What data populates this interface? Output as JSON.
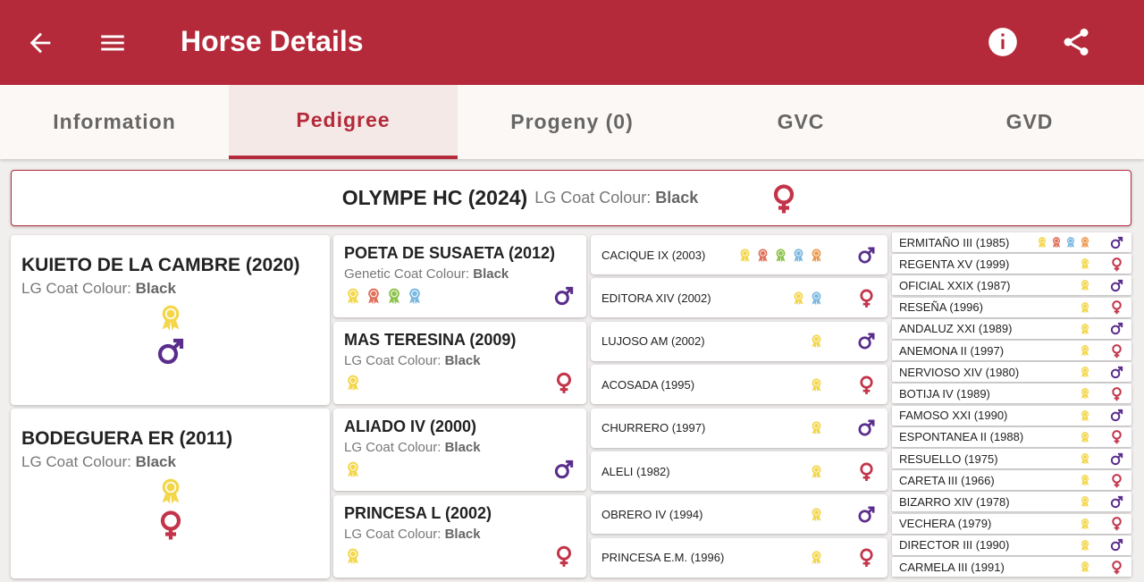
{
  "header": {
    "title": "Horse Details"
  },
  "tabs": {
    "items": [
      "Information",
      "Pedigree",
      "Progeny (0)",
      "GVC",
      "GVD"
    ],
    "active": 1
  },
  "subject": {
    "name": "OLYMPE HC (2024)",
    "coat_label": "LG Coat Colour:",
    "coat": "Black",
    "sex": "F"
  },
  "generation1": [
    {
      "name": "KUIETO DE LA CAMBRE (2020)",
      "coat_label": "LG Coat Colour:",
      "coat": "Black",
      "sex": "M",
      "awards": [
        "#f3d64a"
      ]
    },
    {
      "name": "BODEGUERA ER (2011)",
      "coat_label": "LG Coat Colour:",
      "coat": "Black",
      "sex": "F",
      "awards": [
        "#f3d64a"
      ]
    }
  ],
  "generation2": [
    {
      "name": "POETA DE SUSAETA (2012)",
      "coat_label": "Genetic Coat Colour:",
      "coat": "Black",
      "sex": "M",
      "awards": [
        "#f3d64a",
        "#e0705a",
        "#8cc34a",
        "#7ab8e0"
      ]
    },
    {
      "name": "MAS TERESINA (2009)",
      "coat_label": "LG Coat Colour:",
      "coat": "Black",
      "sex": "F",
      "awards": [
        "#f3d64a"
      ]
    },
    {
      "name": "ALIADO IV (2000)",
      "coat_label": "LG Coat Colour:",
      "coat": "Black",
      "sex": "M",
      "awards": [
        "#f3d64a"
      ]
    },
    {
      "name": "PRINCESA L (2002)",
      "coat_label": "LG Coat Colour:",
      "coat": "Black",
      "sex": "F",
      "awards": [
        "#f3d64a"
      ]
    }
  ],
  "generation3": [
    {
      "name": "CACIQUE IX (2003)",
      "sex": "M",
      "awards": [
        "#f3d64a",
        "#e0705a",
        "#8cc34a",
        "#7ab8e0",
        "#eb9a50"
      ]
    },
    {
      "name": "EDITORA XIV (2002)",
      "sex": "F",
      "awards": [
        "#f3d64a",
        "#7ab8e0"
      ]
    },
    {
      "name": "LUJOSO AM (2002)",
      "sex": "M",
      "awards": [
        "#f3d64a"
      ]
    },
    {
      "name": "ACOSADA (1995)",
      "sex": "F",
      "awards": [
        "#f3d64a"
      ]
    },
    {
      "name": "CHURRERO (1997)",
      "sex": "M",
      "awards": [
        "#f3d64a"
      ]
    },
    {
      "name": "ALELI (1982)",
      "sex": "F",
      "awards": [
        "#f3d64a"
      ]
    },
    {
      "name": "OBRERO IV (1994)",
      "sex": "M",
      "awards": [
        "#f3d64a"
      ]
    },
    {
      "name": "PRINCESA E.M. (1996)",
      "sex": "F",
      "awards": [
        "#f3d64a"
      ]
    }
  ],
  "generation4": [
    {
      "name": "ERMITAÑO III (1985)",
      "sex": "M",
      "awards": [
        "#f3d64a",
        "#e0705a",
        "#7ab8e0",
        "#eb9a50"
      ]
    },
    {
      "name": "REGENTA XV (1999)",
      "sex": "F",
      "awards": [
        "#f3d64a"
      ]
    },
    {
      "name": "OFICIAL XXIX (1987)",
      "sex": "M",
      "awards": [
        "#f3d64a"
      ]
    },
    {
      "name": "RESEÑA (1996)",
      "sex": "F",
      "awards": [
        "#f3d64a"
      ]
    },
    {
      "name": "ANDALUZ XXI (1989)",
      "sex": "M",
      "awards": [
        "#f3d64a"
      ]
    },
    {
      "name": "ANEMONA II (1997)",
      "sex": "F",
      "awards": [
        "#f3d64a"
      ]
    },
    {
      "name": "NERVIOSO XIV (1980)",
      "sex": "M",
      "awards": [
        "#f3d64a"
      ]
    },
    {
      "name": "BOTIJA IV (1989)",
      "sex": "F",
      "awards": [
        "#f3d64a"
      ]
    },
    {
      "name": "FAMOSO XXI (1990)",
      "sex": "M",
      "awards": [
        "#f3d64a"
      ]
    },
    {
      "name": "ESPONTANEA II (1988)",
      "sex": "F",
      "awards": [
        "#f3d64a"
      ]
    },
    {
      "name": "RESUELLO (1975)",
      "sex": "M",
      "awards": [
        "#f3d64a"
      ]
    },
    {
      "name": "CARETA III (1966)",
      "sex": "F",
      "awards": [
        "#f3d64a"
      ]
    },
    {
      "name": "BIZARRO XIV (1978)",
      "sex": "M",
      "awards": [
        "#f3d64a"
      ]
    },
    {
      "name": "VECHERA (1979)",
      "sex": "F",
      "awards": [
        "#f3d64a"
      ]
    },
    {
      "name": "DIRECTOR III (1990)",
      "sex": "M",
      "awards": [
        "#f3d64a"
      ]
    },
    {
      "name": "CARMELA III (1991)",
      "sex": "F",
      "awards": [
        "#f3d64a"
      ]
    }
  ]
}
